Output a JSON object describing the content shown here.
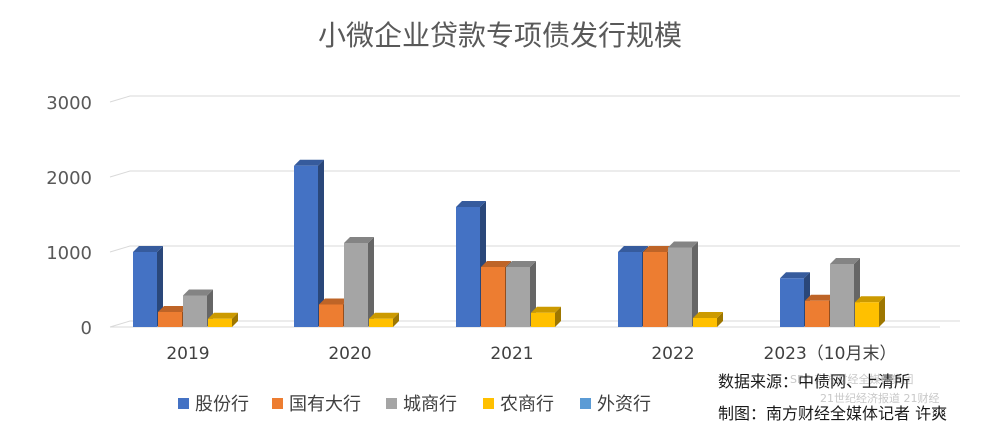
{
  "chart_data": {
    "type": "bar",
    "title": "小微企业贷款专项债发行规模",
    "categories": [
      "2019",
      "2020",
      "2021",
      "2022",
      "2023（10月末）"
    ],
    "series": [
      {
        "name": "股份行",
        "color": "#4472C4",
        "values": [
          1000,
          2150,
          1600,
          1000,
          650
        ]
      },
      {
        "name": "国有大行",
        "color": "#ED7D31",
        "values": [
          200,
          300,
          800,
          1000,
          350
        ]
      },
      {
        "name": "城商行",
        "color": "#A5A5A5",
        "values": [
          420,
          1120,
          800,
          1060,
          840
        ]
      },
      {
        "name": "农商行",
        "color": "#FFC000",
        "values": [
          110,
          110,
          190,
          120,
          330
        ]
      },
      {
        "name": "外资行",
        "color": "#5B9BD5",
        "values": [
          0,
          0,
          0,
          0,
          0
        ]
      }
    ],
    "yticks": [
      0,
      1000,
      2000,
      3000
    ],
    "ylim": [
      0,
      3000
    ],
    "grid": true,
    "legend": "bottom-left"
  },
  "source_note": {
    "source": "数据来源：中债网、上清所",
    "author": "制图：南方财经全媒体记者 许爽"
  },
  "watermark": {
    "line1": "SFC 南方财经全媒体集团",
    "line2": "21世纪经济报道  21财经"
  }
}
